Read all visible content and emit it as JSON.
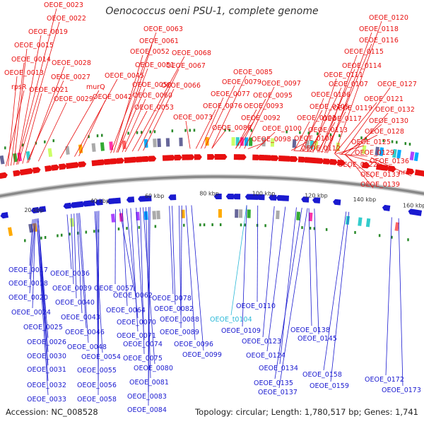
{
  "title": "Oenococcus oeni PSU-1, complete genome",
  "accession": "Accession: NC_008528",
  "topology": "Topology: circular; Length: 1,780,517 bp; Genes: 1,741",
  "colors": {
    "forward": "#e81010",
    "reverse": "#1a1ad0",
    "rna": "#2ab8d8",
    "backbone": "#888888",
    "tick": "#2a8a2a"
  },
  "kbp_labels": [
    "20 kbp",
    "40 kbp",
    "60 kbp",
    "80 kbp",
    "100 kbp",
    "120 kbp",
    "140 kbp",
    "160 kbp"
  ],
  "top_labels": [
    "OEOE_0023",
    "OEOE_0022",
    "OEOE_0019",
    "OEOE_0015",
    "OEOE_0014",
    "OEOE_0013",
    "rpsR",
    "OEOE_0028",
    "OEOE_0027",
    "OEOE_0021",
    "OEOE_0029",
    "murQ",
    "OEOE_0045",
    "OEOE_0042",
    "OEOE_0063",
    "OEOE_0061",
    "OEOE_0052",
    "OEOE_0068",
    "OEOE_0051",
    "OEOE_0067",
    "OEOE_0050",
    "OEOE_0066",
    "OEOE_0060",
    "OEOE_0053",
    "OEOE_0085",
    "OEOE_0079",
    "OEOE_0077",
    "OEOE_0076",
    "OEOE_0073",
    "OEOE_0086",
    "OEOE_0097",
    "OEOE_0095",
    "OEOE_0093",
    "OEOE_0092",
    "OEOE_0100",
    "OEOE_0098",
    "OEOE_0120",
    "OEOE_0118",
    "OEOE_0116",
    "OEOE_0115",
    "OEOE_0114",
    "OEOE_0111",
    "OEOE_0107",
    "OEOE_0106",
    "OEOE_0105",
    "OEOE_0103",
    "OEOE_0108",
    "OEOE_0112",
    "OEOE_0127",
    "OEOE_0121",
    "OEOE_0119",
    "OEOE_0117",
    "OEOE_0113",
    "OEOE_0132",
    "OEOE_0130",
    "OEOE_0128",
    "OEOE_0125",
    "OEOE_0129",
    "OEOE_0122",
    "OEOE_0136",
    "OEOE_0133",
    "nrdF",
    "OEOE_0139"
  ],
  "bottom_labels": [
    "OEOE_0017",
    "OEOE_0018",
    "OEOE_0020",
    "OEOE_0024",
    "OEOE_0025",
    "OEOE_0026",
    "OEOE_0030",
    "OEOE_0031",
    "OEOE_0032",
    "OEOE_0033",
    "OEOE_0036",
    "OEOE_0039",
    "OEOE_0040",
    "OEOE_0043",
    "OEOE_0046",
    "OEOE_0048",
    "OEOE_0054",
    "OEOE_0055",
    "OEOE_0056",
    "OEOE_0058",
    "OEOE_0057",
    "OEOE_0062",
    "OEOE_0064",
    "OEOE_0070",
    "OEOE_0071",
    "OEOE_0074",
    "OEOE_0075",
    "OEOE_0080",
    "OEOE_0081",
    "OEOE_0083",
    "OEOE_0084",
    "OEOE_0078",
    "OEOE_0082",
    "OEOE_0088",
    "OEOE_0089",
    "OEOE_0096",
    "OEOE_0099",
    "OEOE_t0104",
    "OEOE_0110",
    "OEOE_0109",
    "OEOE_0123",
    "OEOE_0124",
    "OEOE_0134",
    "OEOE_0135",
    "OEOE_0137",
    "OEOE_0138",
    "OEOE_0145",
    "OEOE_0158",
    "OEOE_0159",
    "OEOE_0172",
    "OEOE_0173"
  ],
  "rna_label": "OEOE_t0104"
}
